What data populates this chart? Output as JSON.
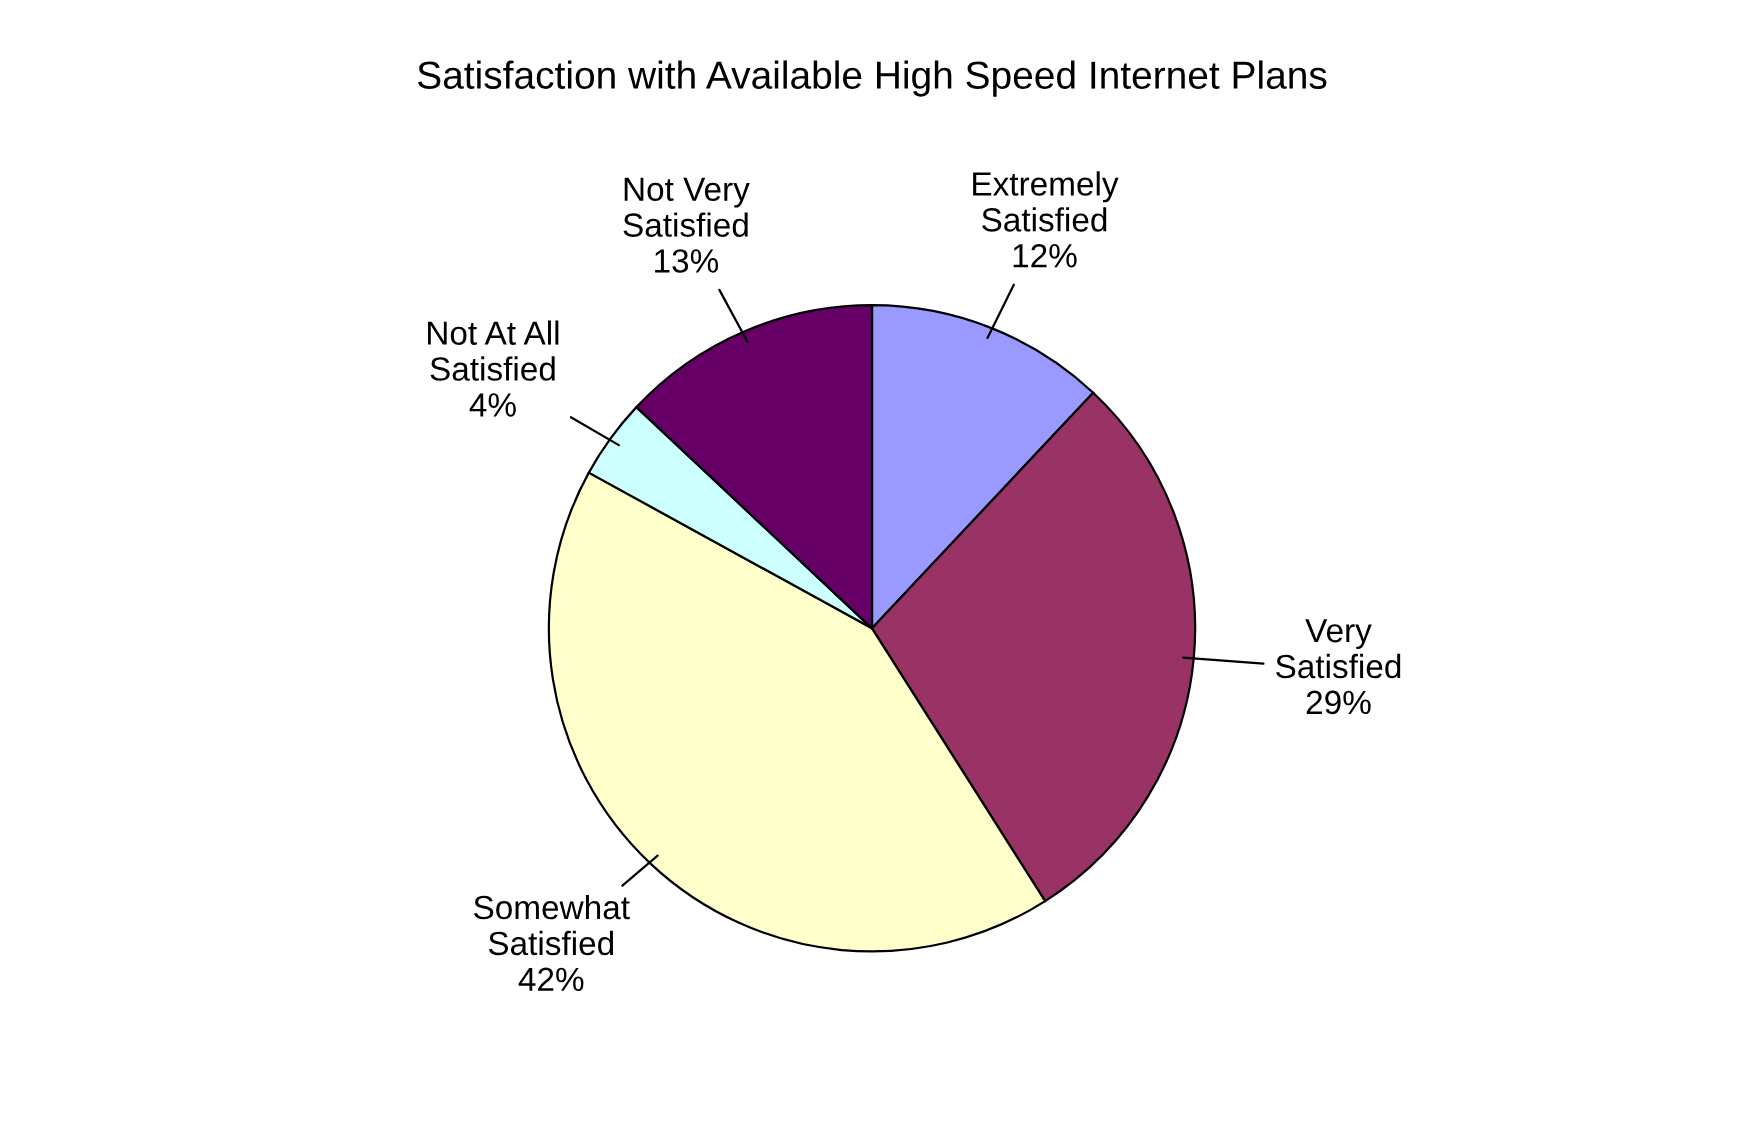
{
  "chart_data": {
    "type": "pie",
    "title": "Satisfaction with Available High Speed Internet Plans",
    "categories": [
      "Extremely Satisfied",
      "Very Satisfied",
      "Somewhat Satisfied",
      "Not At All Satisfied",
      "Not Very Satisfied"
    ],
    "values": [
      12,
      29,
      42,
      4,
      13
    ],
    "colors": [
      "#9999ff",
      "#993366",
      "#ffffcc",
      "#ccffff",
      "#660066"
    ],
    "value_labels": [
      "12%",
      "29%",
      "42%",
      "4%",
      "13%"
    ],
    "legend": false
  }
}
